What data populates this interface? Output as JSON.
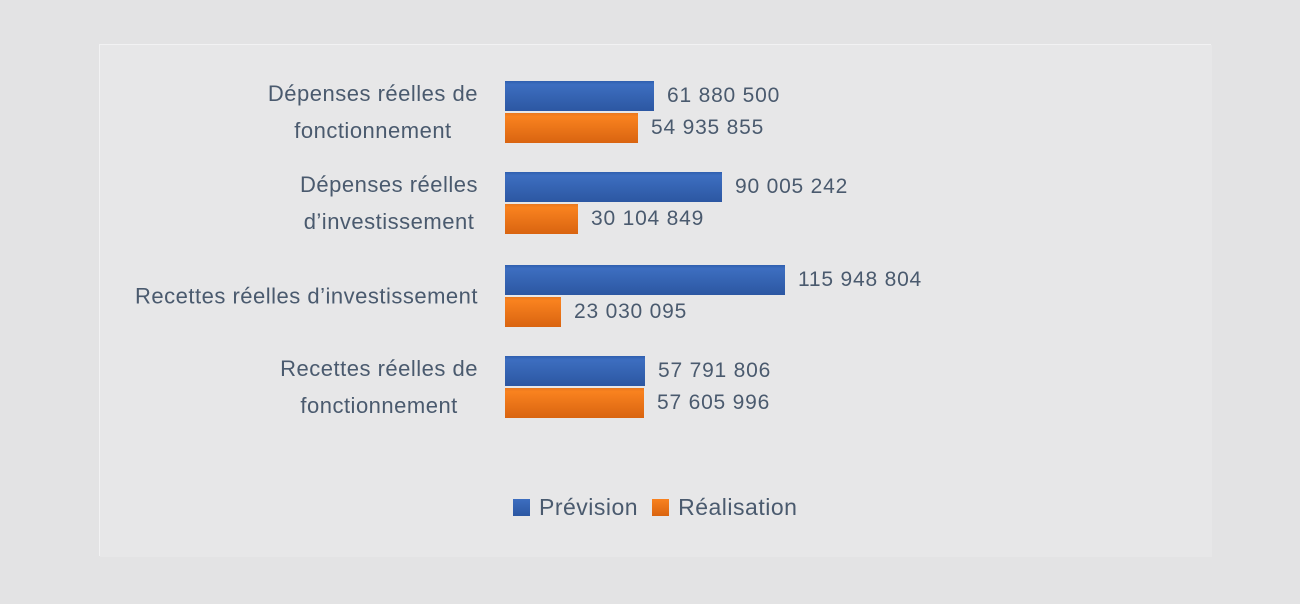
{
  "colors": {
    "background_outer": "#e3e3e4",
    "background_chart_area": "#e7e7e8",
    "text": "#4a5a6e",
    "prevision_blue": "#2E63B8",
    "realisation_orange": "#E8711A"
  },
  "chart_data": {
    "type": "bar",
    "orientation": "horizontal",
    "title": "",
    "xlabel": "",
    "ylabel": "",
    "gridlines": false,
    "axes_visible": false,
    "data_labels": true,
    "legend_position": "bottom",
    "value_axis": {
      "min": 0,
      "max_reference": 115948804
    },
    "categories": [
      "Dépenses réelles de fonctionnement",
      "Dépenses réelles d’investissement",
      "Recettes réelles d’investissement",
      "Recettes réelles de fonctionnement"
    ],
    "category_display_lines": [
      [
        "Dépenses réelles de",
        "fonctionnement"
      ],
      [
        "Dépenses réelles",
        "d’investissement"
      ],
      [
        "Recettes réelles d’investissement"
      ],
      [
        "Recettes réelles de",
        "fonctionnement"
      ]
    ],
    "series": [
      {
        "name": "Prévision",
        "color": "#2E63B8",
        "gradient": [
          "#2F5FAE",
          "#3D6EC0",
          "#2C57A2"
        ],
        "values": [
          61880500,
          90005242,
          115948804,
          57791806
        ],
        "labels": [
          "61 880 500",
          "90 005 242",
          "115 948 804",
          "57 791 806"
        ]
      },
      {
        "name": "Réalisation",
        "color": "#E8711A",
        "gradient": [
          "#E9791F",
          "#F9821F",
          "#D96410"
        ],
        "values": [
          54935855,
          30104849,
          23030095,
          57605996
        ],
        "labels": [
          "54 935 855",
          "30 104 849",
          "23 030 095",
          "57 605 996"
        ]
      }
    ]
  }
}
